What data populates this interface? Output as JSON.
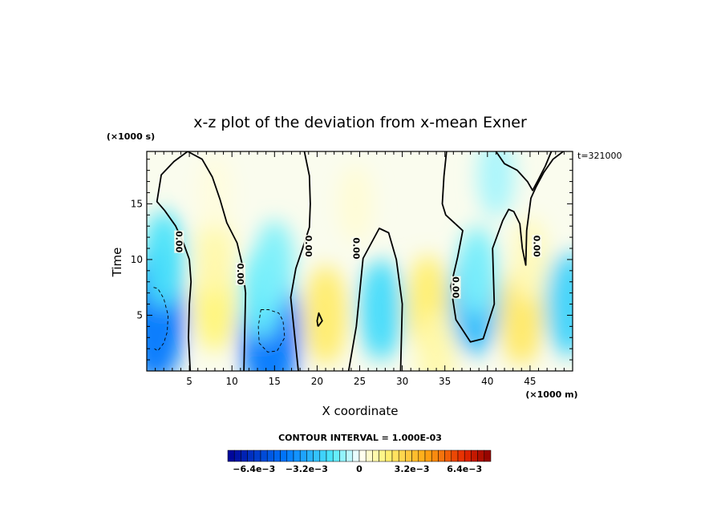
{
  "chart_data": {
    "type": "contour",
    "title": "x-z plot of the deviation from x-mean Exner",
    "xlabel": "X coordinate",
    "ylabel": "Time",
    "x_unit": "(×1000 m)",
    "y_unit": "(×1000 s)",
    "time_label": "t=321000",
    "xlim": [
      0,
      50
    ],
    "ylim": [
      0,
      19.7
    ],
    "xticks": [
      5,
      10,
      15,
      20,
      25,
      30,
      35,
      40,
      45
    ],
    "yticks": [
      5,
      10,
      15
    ],
    "contour_interval_text": "CONTOUR INTERVAL = 1.000E-03",
    "contour_labels": [
      "0.00",
      "0.00",
      "0.00",
      "0.00",
      "0.00",
      "0.00"
    ],
    "colorbar": {
      "vmin": -0.008,
      "vmax": 0.008,
      "n_levels": 40,
      "tick_labels": [
        "−6.4e−3",
        "−3.2e−3",
        "0",
        "3.2e−3",
        "6.4e−3"
      ],
      "tick_values": [
        -0.0064,
        -0.0032,
        0,
        0.0032,
        0.0064
      ]
    },
    "zero_contours": [
      {
        "x": [
          4.8,
          3.2,
          1.7,
          1.2,
          2.1,
          3.4,
          4.3,
          5.0
        ],
        "y": [
          19.7,
          18.8,
          17.6,
          15.2,
          14.4,
          13.0,
          11.5,
          10.0
        ]
      },
      {
        "x": [
          5.0,
          5.2,
          5.0,
          4.9,
          5.1
        ],
        "y": [
          10.0,
          8.0,
          6.0,
          3.0,
          0
        ]
      },
      {
        "x": [
          4.8,
          6.5,
          7.7,
          8.6,
          9.4,
          10.6,
          11.2,
          11.6,
          11.4
        ],
        "y": [
          19.7,
          19.0,
          17.4,
          15.4,
          13.3,
          11.5,
          9.6,
          7.0,
          0
        ]
      },
      {
        "x": [
          18.5,
          19.1,
          19.2,
          19.1,
          18.3,
          17.5,
          16.9,
          17.8
        ],
        "y": [
          19.7,
          17.5,
          15.0,
          12.9,
          11.0,
          9.2,
          6.6,
          0
        ]
      },
      {
        "x": [
          23.7,
          24.6,
          25.4,
          27.3,
          28.4,
          29.3,
          30.0,
          29.8
        ],
        "y": [
          0,
          4.0,
          10.1,
          12.8,
          12.4,
          10.0,
          6.0,
          0
        ]
      },
      {
        "x": [
          35.2,
          34.9,
          34.7,
          35.1,
          37.1,
          36.5,
          35.7,
          36.3,
          38.0,
          39.5,
          40.8,
          40.6,
          41.8,
          42.5,
          43.1,
          43.8,
          44.1,
          44.5,
          44.6,
          45.1,
          45.7,
          46.6,
          47.7,
          48.9
        ],
        "y": [
          19.7,
          17.5,
          15.0,
          14.0,
          12.6,
          10.2,
          7.6,
          4.6,
          2.6,
          2.9,
          6.0,
          11.0,
          13.5,
          14.5,
          14.3,
          13.2,
          11.0,
          9.5,
          12.6,
          15.5,
          16.5,
          17.8,
          19.0,
          19.7
        ]
      },
      {
        "x": [
          41.0,
          42.0,
          43.5,
          44.7,
          45.3,
          46.0,
          46.8,
          47.5
        ],
        "y": [
          19.7,
          18.6,
          18.0,
          17.0,
          16.2,
          17.2,
          18.4,
          19.7
        ]
      },
      {
        "x": [
          20.1,
          20.6,
          20.2,
          20.0,
          20.1
        ],
        "y": [
          4.0,
          4.5,
          5.2,
          4.5,
          4.0
        ]
      }
    ],
    "negative_contours": [
      {
        "x": [
          0.8,
          1.3,
          2.0,
          2.5,
          2.4,
          2.0,
          1.3,
          0.9
        ],
        "y": [
          7.5,
          7.4,
          6.5,
          5.0,
          3.5,
          2.5,
          1.8,
          2.0
        ]
      },
      {
        "x": [
          13.4,
          14.3,
          15.5,
          16.0,
          16.2,
          15.3,
          14.2,
          13.2,
          13.1,
          13.4
        ],
        "y": [
          5.5,
          5.5,
          5.2,
          4.5,
          3.0,
          1.8,
          1.7,
          2.5,
          4.0,
          5.5
        ]
      }
    ],
    "anomalies": [
      {
        "x": 1.0,
        "y": 5.0,
        "value": -0.0045
      },
      {
        "x": 2.0,
        "y": 10.0,
        "value": -0.0018
      },
      {
        "x": 14.5,
        "y": 3.5,
        "value": -0.0045
      },
      {
        "x": 13.5,
        "y": 7.0,
        "value": -0.0014
      },
      {
        "x": 15.0,
        "y": 9.5,
        "value": -0.0012
      },
      {
        "x": 27.5,
        "y": 5.5,
        "value": -0.002
      },
      {
        "x": 38.5,
        "y": 6.5,
        "value": -0.0028
      },
      {
        "x": 38.8,
        "y": 9.0,
        "value": -0.0012
      },
      {
        "x": 49.5,
        "y": 6.0,
        "value": -0.0022
      },
      {
        "x": 41.0,
        "y": 17.5,
        "value": -0.0008
      },
      {
        "x": 8.0,
        "y": 6.0,
        "value": 0.0016
      },
      {
        "x": 8.0,
        "y": 10.5,
        "value": 0.001
      },
      {
        "x": 21.0,
        "y": 5.0,
        "value": 0.0019
      },
      {
        "x": 33.0,
        "y": 6.0,
        "value": 0.0018
      },
      {
        "x": 44.0,
        "y": 5.0,
        "value": 0.002
      },
      {
        "x": 45.0,
        "y": 10.0,
        "value": 0.0008
      },
      {
        "x": 34.0,
        "y": 1.5,
        "value": 0.001
      },
      {
        "x": 24.5,
        "y": 15.0,
        "value": 0.0005
      },
      {
        "x": 8.0,
        "y": 16.0,
        "value": 0.0004
      }
    ]
  }
}
